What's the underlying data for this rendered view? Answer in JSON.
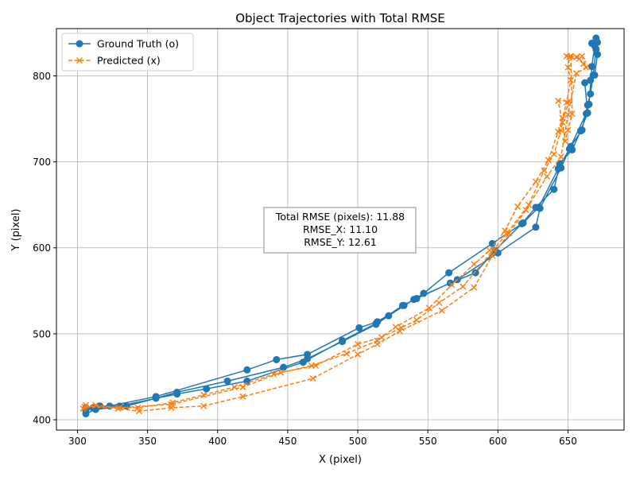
{
  "chart_data": {
    "type": "line",
    "title": "Object Trajectories with Total RMSE",
    "xlabel": "X (pixel)",
    "ylabel": "Y (pixel)",
    "xlim": [
      285,
      690
    ],
    "ylim": [
      388,
      855
    ],
    "xticks": [
      300,
      350,
      400,
      450,
      500,
      550,
      600,
      650
    ],
    "yticks": [
      400,
      500,
      600,
      700,
      800
    ],
    "grid": true,
    "legend": "upper-left",
    "colors": {
      "ground_truth": "#1f77b4",
      "predicted": "#ff7f0e"
    },
    "annotation": [
      "Total RMSE (pixels): 11.88",
      "RMSE_X: 11.10",
      "RMSE_Y: 12.61"
    ],
    "series": [
      {
        "name": "Ground Truth (o)",
        "marker": "o",
        "linestyle": "solid",
        "points": [
          [
            306,
            410
          ],
          [
            311,
            414
          ],
          [
            323,
            416
          ],
          [
            356,
            427
          ],
          [
            421,
            458
          ],
          [
            442,
            470
          ],
          [
            464,
            476
          ],
          [
            501,
            507
          ],
          [
            514,
            514
          ],
          [
            533,
            533
          ],
          [
            547,
            547
          ],
          [
            565,
            571
          ],
          [
            596,
            605
          ],
          [
            618,
            629
          ],
          [
            629,
            647
          ],
          [
            643,
            692
          ],
          [
            652,
            718
          ],
          [
            660,
            737
          ],
          [
            664,
            766
          ],
          [
            666,
            779
          ],
          [
            668,
            801
          ],
          [
            670,
            831
          ],
          [
            667,
            838
          ],
          [
            670,
            844
          ],
          [
            671,
            825
          ],
          [
            669,
            801
          ],
          [
            666,
            795
          ],
          [
            662,
            792
          ],
          [
            664,
            757
          ],
          [
            659,
            736
          ],
          [
            653,
            714
          ],
          [
            644,
            698
          ],
          [
            640,
            668
          ],
          [
            627,
            647
          ],
          [
            617,
            628
          ],
          [
            598,
            597
          ],
          [
            584,
            571
          ],
          [
            566,
            559
          ],
          [
            540,
            540
          ],
          [
            522,
            521
          ],
          [
            513,
            511
          ],
          [
            489,
            491
          ],
          [
            464,
            471
          ],
          [
            447,
            461
          ],
          [
            407,
            445
          ],
          [
            371,
            432
          ],
          [
            356,
            425
          ],
          [
            335,
            416
          ],
          [
            313,
            412
          ],
          [
            306,
            407
          ],
          [
            306,
            414
          ],
          [
            316,
            416
          ],
          [
            330,
            416
          ],
          [
            371,
            430
          ],
          [
            392,
            436
          ],
          [
            421,
            445
          ],
          [
            461,
            467
          ],
          [
            489,
            492
          ],
          [
            513,
            512
          ],
          [
            532,
            533
          ],
          [
            542,
            541
          ],
          [
            571,
            563
          ],
          [
            600,
            594
          ],
          [
            627,
            624
          ],
          [
            630,
            646
          ],
          [
            645,
            693
          ],
          [
            651,
            715
          ],
          [
            663,
            756
          ],
          [
            665,
            767
          ],
          [
            667,
            811
          ],
          [
            669,
            835
          ],
          [
            671,
            839
          ]
        ]
      },
      {
        "name": "Predicted (x)",
        "marker": "x",
        "linestyle": "dashed",
        "points": [
          [
            304,
            413
          ],
          [
            313,
            417
          ],
          [
            330,
            414
          ],
          [
            367,
            418
          ],
          [
            418,
            438
          ],
          [
            445,
            455
          ],
          [
            470,
            463
          ],
          [
            500,
            488
          ],
          [
            517,
            496
          ],
          [
            531,
            507
          ],
          [
            542,
            516
          ],
          [
            558,
            536
          ],
          [
            575,
            555
          ],
          [
            597,
            598
          ],
          [
            606,
            616
          ],
          [
            622,
            650
          ],
          [
            633,
            690
          ],
          [
            640,
            709
          ],
          [
            645,
            737
          ],
          [
            646,
            751
          ],
          [
            649,
            769
          ],
          [
            652,
            795
          ],
          [
            650,
            810
          ],
          [
            651,
            822
          ],
          [
            658,
            820
          ],
          [
            661,
            814
          ],
          [
            656,
            822
          ],
          [
            649,
            823
          ],
          [
            652,
            823
          ],
          [
            653,
            756
          ],
          [
            650,
            737
          ],
          [
            648,
            724
          ],
          [
            646,
            746
          ],
          [
            643,
            771
          ],
          [
            651,
            771
          ],
          [
            643,
            735
          ],
          [
            636,
            702
          ],
          [
            627,
            677
          ],
          [
            614,
            648
          ],
          [
            605,
            620
          ],
          [
            594,
            597
          ],
          [
            583,
            581
          ],
          [
            567,
            557
          ],
          [
            551,
            530
          ],
          [
            527,
            508
          ],
          [
            514,
            492
          ],
          [
            492,
            477
          ],
          [
            467,
            463
          ],
          [
            440,
            453
          ],
          [
            412,
            438
          ],
          [
            390,
            429
          ],
          [
            368,
            420
          ],
          [
            343,
            414
          ],
          [
            305,
            415
          ],
          [
            306,
            417
          ],
          [
            329,
            413
          ],
          [
            344,
            410
          ],
          [
            367,
            414
          ],
          [
            390,
            416
          ],
          [
            418,
            427
          ],
          [
            468,
            448
          ],
          [
            500,
            476
          ],
          [
            514,
            488
          ],
          [
            530,
            503
          ],
          [
            560,
            527
          ],
          [
            583,
            554
          ],
          [
            596,
            591
          ],
          [
            608,
            617
          ],
          [
            620,
            644
          ],
          [
            635,
            683
          ],
          [
            645,
            706
          ],
          [
            650,
            755
          ],
          [
            656,
            803
          ],
          [
            663,
            810
          ],
          [
            660,
            823
          ],
          [
            652,
            823
          ],
          [
            649,
            823
          ]
        ]
      }
    ]
  }
}
